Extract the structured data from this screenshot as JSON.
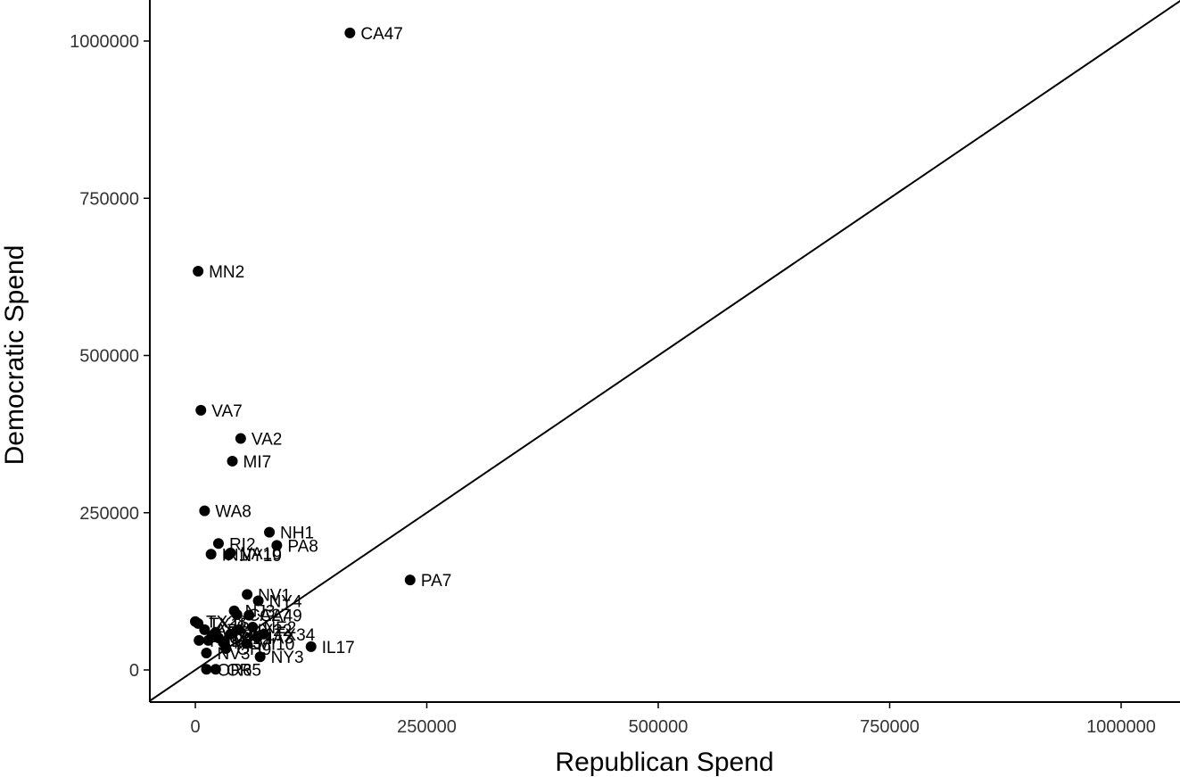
{
  "chart_data": {
    "type": "scatter",
    "title": "",
    "xlabel": "Republican Spend",
    "ylabel": "Democratic Spend",
    "xlim": [
      -50000,
      1065000
    ],
    "ylim": [
      -50000,
      1065000
    ],
    "x_ticks": [
      0,
      250000,
      500000,
      750000,
      1000000
    ],
    "y_ticks": [
      0,
      250000,
      500000,
      750000,
      1000000
    ],
    "x_tick_labels": [
      "0",
      "250000",
      "500000",
      "750000",
      "1000000"
    ],
    "y_tick_labels": [
      "0",
      "250000",
      "500000",
      "750000",
      "1000000"
    ],
    "reference_line": "y = x",
    "grid": false,
    "point_color": "#000000",
    "points": [
      {
        "label": "CA47",
        "x": 167000,
        "y": 1013000
      },
      {
        "label": "MN2",
        "x": 3000,
        "y": 634000
      },
      {
        "label": "VA7",
        "x": 6000,
        "y": 413000
      },
      {
        "label": "VA2",
        "x": 49000,
        "y": 368000
      },
      {
        "label": "MI7",
        "x": 40000,
        "y": 332000
      },
      {
        "label": "WA8",
        "x": 10000,
        "y": 253000
      },
      {
        "label": "NH1",
        "x": 80000,
        "y": 219000
      },
      {
        "label": "PA8",
        "x": 88000,
        "y": 198000
      },
      {
        "label": "RI2",
        "x": 25000,
        "y": 201000
      },
      {
        "label": "IN1",
        "x": 17000,
        "y": 184000
      },
      {
        "label": "NY19",
        "x": 36000,
        "y": 183000
      },
      {
        "label": "VA10",
        "x": 38000,
        "y": 186000
      },
      {
        "label": "PA7",
        "x": 232000,
        "y": 143000
      },
      {
        "label": "NV1",
        "x": 56000,
        "y": 120000
      },
      {
        "label": "NY4",
        "x": 68000,
        "y": 110000
      },
      {
        "label": "NJ3",
        "x": 42000,
        "y": 94000
      },
      {
        "label": "CA49",
        "x": 58000,
        "y": 87000
      },
      {
        "label": "IL17",
        "x": 125000,
        "y": 37000
      },
      {
        "label": "TX34",
        "x": 74000,
        "y": 57000
      },
      {
        "label": "NY3",
        "x": 70000,
        "y": 21000
      },
      {
        "label": "NV3",
        "x": 12000,
        "y": 27000
      },
      {
        "label": "OR5",
        "x": 22000,
        "y": 1000
      },
      {
        "label": "OR6",
        "x": 12000,
        "y": 1000
      },
      {
        "label": "TX28",
        "x": 0,
        "y": 77000
      },
      {
        "label": "TX15",
        "x": 3000,
        "y": 74000
      },
      {
        "label": "AZ6",
        "x": 10000,
        "y": 64000
      },
      {
        "label": "NM2",
        "x": 14000,
        "y": 47000
      },
      {
        "label": "PA1",
        "x": 4000,
        "y": 47000
      },
      {
        "label": "CA22",
        "x": 25000,
        "y": 51000
      },
      {
        "label": "MI3",
        "x": 30000,
        "y": 44000
      },
      {
        "label": "NY1",
        "x": 38000,
        "y": 57000
      },
      {
        "label": "NY22",
        "x": 47000,
        "y": 64000
      },
      {
        "label": "OH9",
        "x": 33000,
        "y": 34000
      },
      {
        "label": "MI10",
        "x": 55000,
        "y": 42000
      },
      {
        "label": "CA27",
        "x": 45000,
        "y": 88000
      },
      {
        "label": "NE2",
        "x": 62000,
        "y": 68000
      },
      {
        "label": "IA3",
        "x": 67000,
        "y": 52000
      },
      {
        "label": "CO8",
        "x": 22000,
        "y": 60000
      },
      {
        "label": "WI3",
        "x": 18000,
        "y": 55000
      }
    ]
  }
}
